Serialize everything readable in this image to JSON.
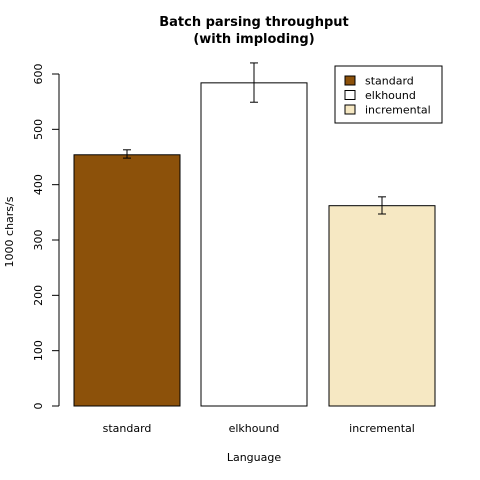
{
  "chart_data": {
    "type": "bar",
    "title_lines": [
      "Batch parsing throughput",
      "(with imploding)"
    ],
    "xlabel": "Language",
    "ylabel": "1000 chars/s",
    "ylim": [
      0,
      600
    ],
    "yticks": [
      "0",
      "100",
      "200",
      "300",
      "400",
      "500",
      "600"
    ],
    "categories": [
      "standard",
      "elkhound",
      "incremental"
    ],
    "values": [
      454,
      584,
      362
    ],
    "error_low": [
      448,
      549,
      347
    ],
    "error_high": [
      463,
      620,
      378
    ],
    "colors": [
      "#8c510a",
      "#ffffff",
      "#f6e8c3"
    ],
    "legend": {
      "position": "top-right",
      "entries": [
        "standard",
        "elkhound",
        "incremental"
      ]
    },
    "grid": false
  }
}
